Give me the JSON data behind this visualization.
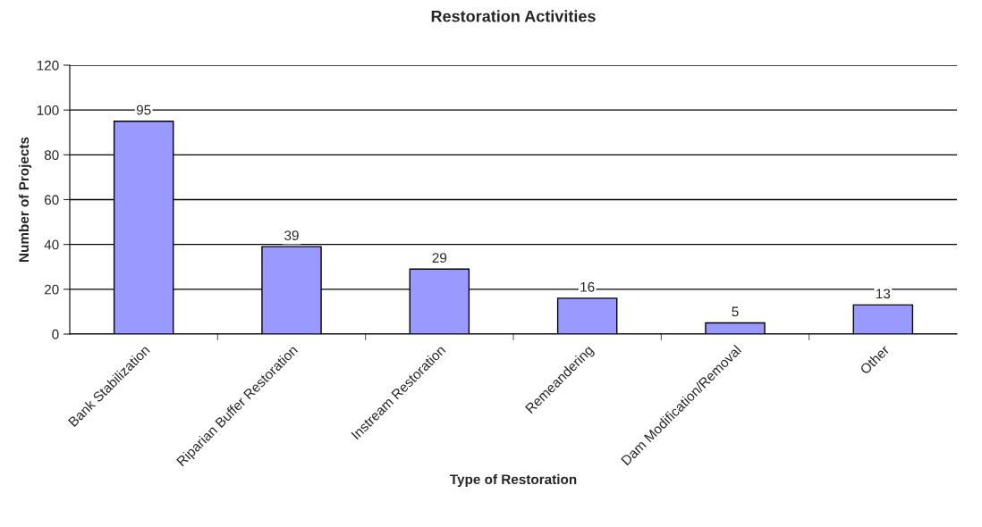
{
  "chart_data": {
    "type": "bar",
    "title": "Restoration Activities",
    "xlabel": "Type of Restoration",
    "ylabel": "Number of Projects",
    "categories": [
      "Bank Stabilization",
      "Riparian Buffer Restoration",
      "Instream Restoration",
      "Remeandering",
      "Dam Modification/Removal",
      "Other"
    ],
    "values": [
      95,
      39,
      29,
      16,
      5,
      13
    ],
    "color": "#9999ff",
    "ylim": [
      0,
      120
    ],
    "yticks": [
      0,
      20,
      40,
      60,
      80,
      100,
      120
    ],
    "grid": "y",
    "data_labels": true,
    "legend": false
  }
}
